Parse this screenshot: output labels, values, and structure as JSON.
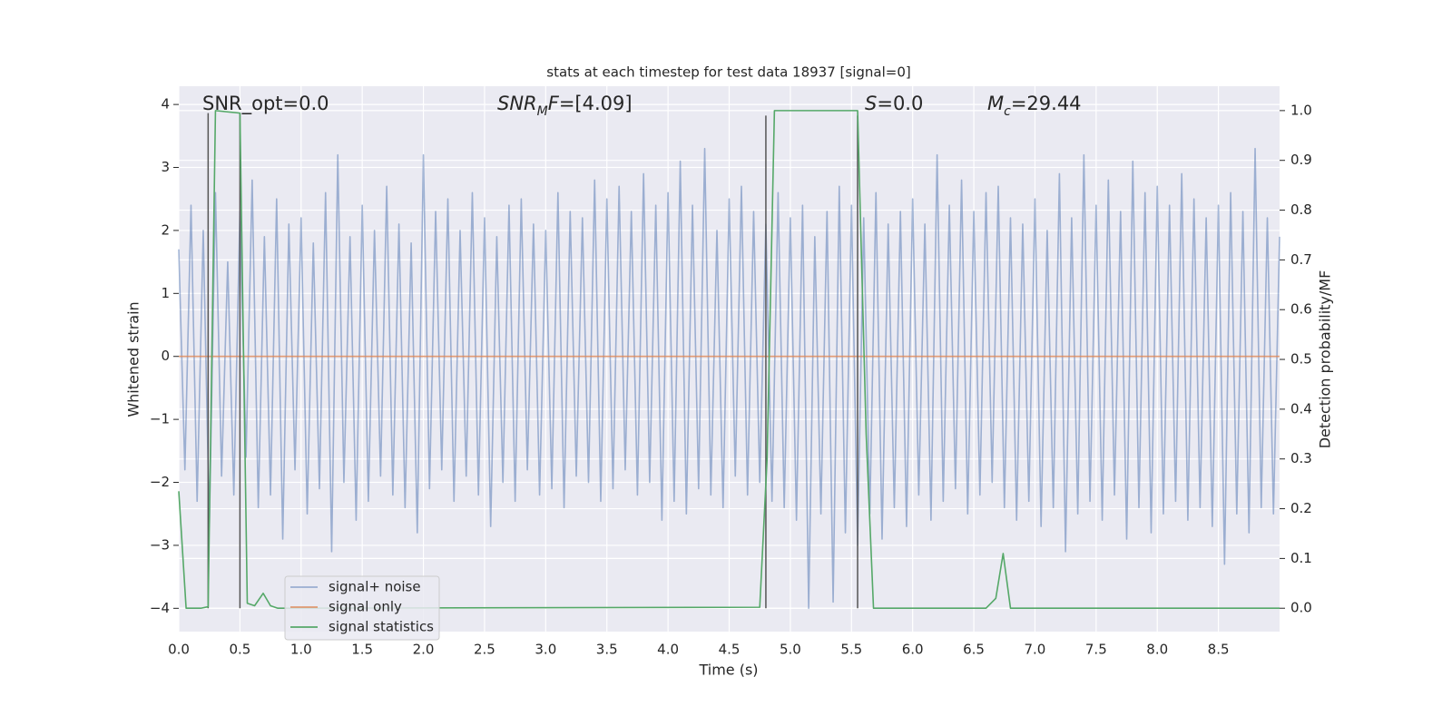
{
  "chart_data": {
    "type": "line",
    "title": "stats at each timestep for test data 18937 [signal=0]",
    "xlabel": "Time (s)",
    "ylabel": "Whitened strain",
    "y2label": "Detection probability/MF",
    "xlim": [
      0,
      9.0
    ],
    "ylim": [
      -4.37,
      4.29
    ],
    "y2lim": [
      -0.047,
      1.049
    ],
    "xticks": [
      {
        "value": 0,
        "label": "0.0"
      },
      0.5,
      {
        "value": 1,
        "label": "1.0"
      },
      1.5,
      {
        "value": 2,
        "label": "2.0"
      },
      2.5,
      {
        "value": 3,
        "label": "3.0"
      },
      3.5,
      {
        "value": 4,
        "label": "4.0"
      },
      4.5,
      {
        "value": 5,
        "label": "5.0"
      },
      5.5,
      {
        "value": 6,
        "label": "6.0"
      },
      6.5,
      {
        "value": 7,
        "label": "7.0"
      },
      7.5,
      {
        "value": 8,
        "label": "8.0"
      },
      8.5
    ],
    "yticks": [
      {
        "value": -4,
        "label": "−4"
      },
      {
        "value": -3,
        "label": "−3"
      },
      {
        "value": -2,
        "label": "−2"
      },
      {
        "value": -1,
        "label": "−1"
      },
      0,
      1,
      2,
      3,
      4
    ],
    "y2ticks": [
      {
        "value": 0,
        "label": "0.0"
      },
      0.1,
      0.2,
      0.3,
      0.4,
      0.5,
      0.6,
      0.7,
      0.8,
      0.9,
      {
        "value": 1,
        "label": "1.0"
      }
    ],
    "grid": true,
    "legend": "lower left",
    "annotations": [
      [
        {
          "text": "SNR_opt=0.0",
          "style": "plain"
        }
      ],
      [
        {
          "text": "SNR",
          "style": "italic"
        },
        {
          "text": "M",
          "style": "sub"
        },
        {
          "text": "F",
          "style": "italic"
        },
        {
          "text": "=[4.09]",
          "style": "plain"
        }
      ],
      [
        {
          "text": "S",
          "style": "italic"
        },
        {
          "text": "=0.0",
          "style": "plain"
        }
      ],
      [
        {
          "text": "M",
          "style": "italic"
        },
        {
          "text": "c",
          "style": "sub"
        },
        {
          "text": "=29.44",
          "style": "plain"
        }
      ]
    ],
    "vlines": [
      {
        "x": 0.24,
        "ymin": 0,
        "ymax": 0.995,
        "color": "#555555"
      },
      {
        "x": 0.5,
        "ymin": 0,
        "ymax": 0.995,
        "color": "#555555"
      },
      {
        "x": 4.8,
        "ymin": 0,
        "ymax": 0.99,
        "color": "#555555"
      },
      {
        "x": 5.55,
        "ymin": 0,
        "ymax": 0.99,
        "color": "#555555"
      }
    ],
    "series": [
      {
        "name": "signal+ noise",
        "color": "#4c72b0",
        "opacity": 0.5,
        "x": [
          0,
          0.05,
          0.1,
          0.15,
          0.2,
          0.25,
          0.3,
          0.35,
          0.4,
          0.45,
          0.5,
          0.55,
          0.6,
          0.65,
          0.7,
          0.75,
          0.8,
          0.85,
          0.9,
          0.95,
          1,
          1.05,
          1.1,
          1.15,
          1.2,
          1.25,
          1.3,
          1.35,
          1.4,
          1.45,
          1.5,
          1.55,
          1.6,
          1.65,
          1.7,
          1.75,
          1.8,
          1.85,
          1.9,
          1.95,
          2,
          2.05,
          2.1,
          2.15,
          2.2,
          2.25,
          2.3,
          2.35,
          2.4,
          2.45,
          2.5,
          2.55,
          2.6,
          2.65,
          2.7,
          2.75,
          2.8,
          2.85,
          2.9,
          2.95,
          3,
          3.05,
          3.1,
          3.15,
          3.2,
          3.25,
          3.3,
          3.35,
          3.4,
          3.45,
          3.5,
          3.55,
          3.6,
          3.65,
          3.7,
          3.75,
          3.8,
          3.85,
          3.9,
          3.95,
          4,
          4.05,
          4.1,
          4.15,
          4.2,
          4.25,
          4.3,
          4.35,
          4.4,
          4.45,
          4.5,
          4.55,
          4.6,
          4.65,
          4.7,
          4.75,
          4.8,
          4.85,
          4.9,
          4.95,
          5,
          5.05,
          5.1,
          5.15,
          5.2,
          5.25,
          5.3,
          5.35,
          5.4,
          5.45,
          5.5,
          5.55,
          5.6,
          5.65,
          5.7,
          5.75,
          5.8,
          5.85,
          5.9,
          5.95,
          6,
          6.05,
          6.1,
          6.15,
          6.2,
          6.25,
          6.3,
          6.35,
          6.4,
          6.45,
          6.5,
          6.55,
          6.6,
          6.65,
          6.7,
          6.75,
          6.8,
          6.85,
          6.9,
          6.95,
          7,
          7.05,
          7.1,
          7.15,
          7.2,
          7.25,
          7.3,
          7.35,
          7.4,
          7.45,
          7.5,
          7.55,
          7.6,
          7.65,
          7.7,
          7.75,
          7.8,
          7.85,
          7.9,
          7.95,
          8,
          8.05,
          8.1,
          8.15,
          8.2,
          8.25,
          8.3,
          8.35,
          8.4,
          8.45,
          8.5,
          8.55,
          8.6,
          8.65,
          8.7,
          8.75,
          8.8,
          8.85,
          8.9,
          8.95,
          9
        ],
        "values": [
          1.7,
          -1.8,
          2.4,
          -2.3,
          2.0,
          -2.7,
          2.6,
          -1.9,
          1.5,
          -2.2,
          2.3,
          -1.6,
          2.8,
          -2.4,
          1.9,
          -2.2,
          2.5,
          -2.9,
          2.1,
          -1.8,
          2.2,
          -2.5,
          1.8,
          -2.1,
          2.6,
          -3.1,
          3.2,
          -2.0,
          1.9,
          -2.6,
          2.4,
          -2.3,
          2.0,
          -1.9,
          2.7,
          -2.2,
          2.1,
          -2.4,
          1.8,
          -2.8,
          3.2,
          -2.1,
          2.3,
          -1.8,
          2.5,
          -2.3,
          2.0,
          -1.9,
          2.6,
          -2.2,
          2.2,
          -2.7,
          1.9,
          -2.0,
          2.4,
          -2.3,
          2.5,
          -1.8,
          2.1,
          -2.2,
          2.0,
          -2.1,
          2.6,
          -2.4,
          2.3,
          -1.9,
          2.2,
          -2.0,
          2.8,
          -2.3,
          2.5,
          -2.1,
          2.7,
          -1.8,
          2.3,
          -2.2,
          2.9,
          -2.0,
          2.4,
          -2.6,
          2.6,
          -2.3,
          3.1,
          -2.5,
          2.4,
          -2.1,
          3.3,
          -2.2,
          2.0,
          -2.4,
          2.5,
          -1.9,
          2.7,
          -2.2,
          2.3,
          -2.0,
          2.1,
          -2.3,
          2.6,
          -2.4,
          2.2,
          -2.6,
          2.4,
          -4.0,
          1.9,
          -2.5,
          2.3,
          -3.9,
          2.7,
          -2.8,
          2.4,
          -3.0,
          2.2,
          -2.5,
          2.6,
          -2.9,
          2.1,
          -2.4,
          2.3,
          -2.7,
          2.5,
          -2.2,
          2.1,
          -2.6,
          3.2,
          -2.3,
          2.4,
          -2.1,
          2.8,
          -2.5,
          2.3,
          -2.2,
          2.6,
          -2.0,
          2.7,
          -2.4,
          2.2,
          -2.6,
          2.1,
          -2.3,
          2.5,
          -2.7,
          2.0,
          -2.4,
          2.9,
          -3.1,
          2.2,
          -2.5,
          3.2,
          -2.3,
          2.4,
          -2.6,
          2.8,
          -2.2,
          2.3,
          -2.9,
          3.1,
          -2.4,
          2.6,
          -2.8,
          2.7,
          -2.5,
          2.4,
          -2.3,
          2.9,
          -2.6,
          2.5,
          -2.4,
          2.2,
          -2.7,
          2.4,
          -3.3,
          2.6,
          -2.5,
          2.3,
          -2.8,
          3.3,
          -2.4,
          2.2,
          -2.5,
          1.9
        ]
      },
      {
        "name": "signal only",
        "color": "#dd8452",
        "opacity": 0.8,
        "x": [
          0,
          9.0
        ],
        "values": [
          0,
          0
        ]
      },
      {
        "name": "signal statistics",
        "color": "#55a868",
        "opacity": 1,
        "axis": "y2",
        "x": [
          0.0,
          0.06,
          0.18,
          0.24,
          0.3,
          0.5,
          0.56,
          0.62,
          0.69,
          0.75,
          0.81,
          0.9,
          4.75,
          4.81,
          4.87,
          5.55,
          5.62,
          5.68,
          6.6,
          6.68,
          6.74,
          6.8,
          9.0
        ],
        "values": [
          0.235,
          0.0,
          0.0,
          0.003,
          1.0,
          0.995,
          0.01,
          0.005,
          0.03,
          0.005,
          0.0,
          0.0,
          0.002,
          0.3,
          1.0,
          1.0,
          0.35,
          0.0,
          0.0,
          0.02,
          0.11,
          0.0,
          0.0
        ]
      }
    ]
  }
}
